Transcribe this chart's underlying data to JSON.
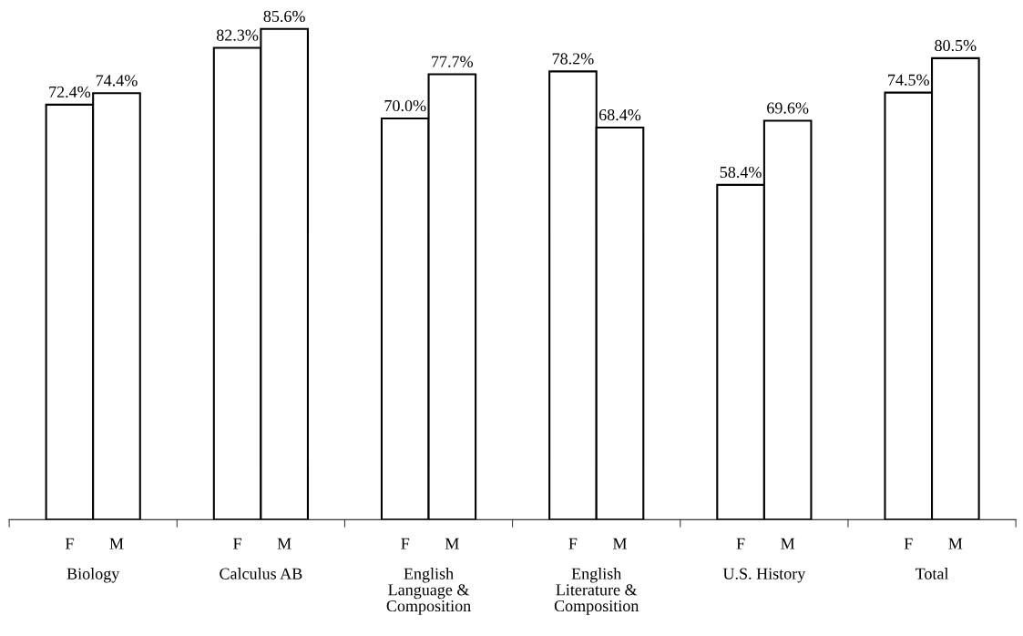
{
  "chart_data": {
    "type": "bar",
    "categories": [
      "Biology",
      "Calculus AB",
      "English\nLanguage &\nComposition",
      "English\nLiterature &\nComposition",
      "U.S. History",
      "Total"
    ],
    "series": [
      {
        "name": "F",
        "color": "#ffffff",
        "values": [
          72.4,
          82.3,
          70.0,
          78.2,
          58.4,
          74.5
        ],
        "value_labels": [
          "72.4%",
          "82.3%",
          "70.0%",
          "78.2%",
          "58.4%",
          "74.5%"
        ]
      },
      {
        "name": "M",
        "color": "#ffffff",
        "values": [
          74.4,
          85.6,
          77.7,
          68.4,
          69.6,
          80.5
        ],
        "value_labels": [
          "74.4%",
          "85.6%",
          "77.7%",
          "68.4%",
          "69.6%",
          "80.5%"
        ]
      }
    ],
    "tick_labels": "x",
    "grid": false,
    "legend": false
  }
}
